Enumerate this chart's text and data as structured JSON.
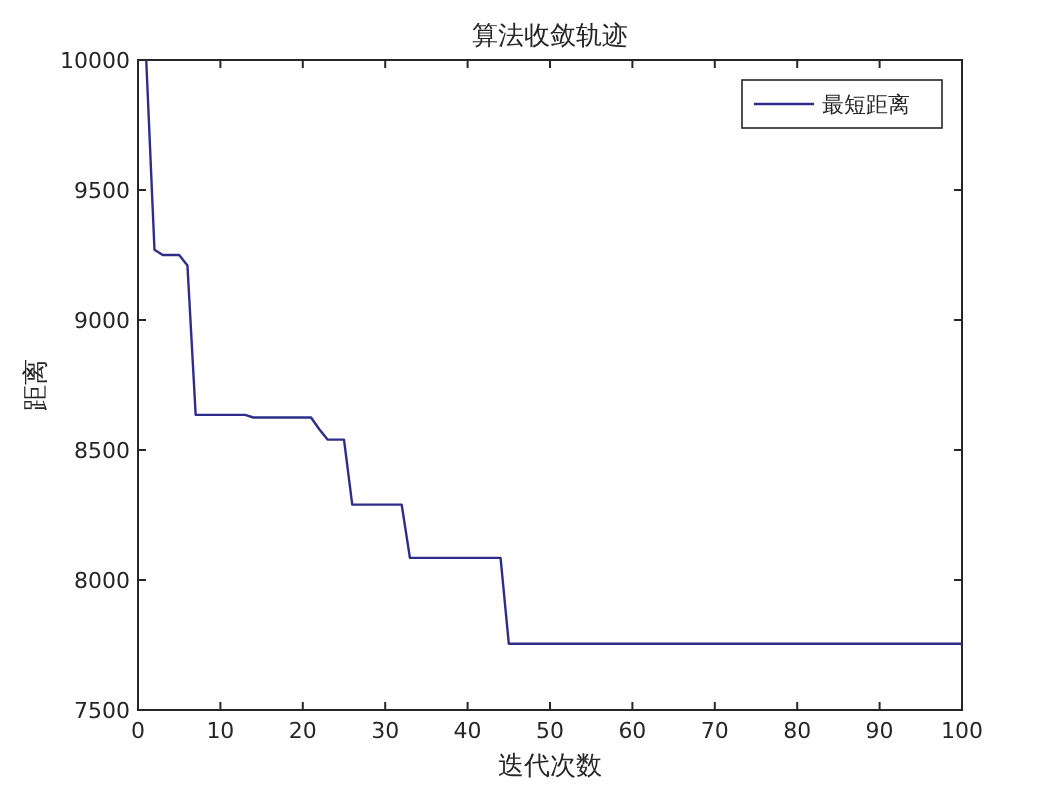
{
  "chart_data": {
    "type": "line",
    "title": "算法收敛轨迹",
    "xlabel": "迭代次数",
    "ylabel": "距离",
    "xlim": [
      0,
      100
    ],
    "ylim": [
      7500,
      10000
    ],
    "xticks": [
      0,
      10,
      20,
      30,
      40,
      50,
      60,
      70,
      80,
      90,
      100
    ],
    "yticks": [
      7500,
      8000,
      8500,
      9000,
      9500,
      10000
    ],
    "grid": false,
    "legend": "top right",
    "marker": "none",
    "line_style": "solid",
    "series": [
      {
        "name": "最短距离",
        "color": "#2e2e8a",
        "x": [
          1,
          2,
          3,
          4,
          5,
          6,
          7,
          13,
          14,
          21,
          22,
          23,
          25,
          26,
          32,
          33,
          44,
          45,
          100
        ],
        "values": [
          10000,
          9270,
          9250,
          9250,
          9250,
          9210,
          8635,
          8635,
          8625,
          8625,
          8580,
          8540,
          8540,
          8290,
          8290,
          8085,
          8085,
          7755,
          7755
        ]
      }
    ]
  }
}
